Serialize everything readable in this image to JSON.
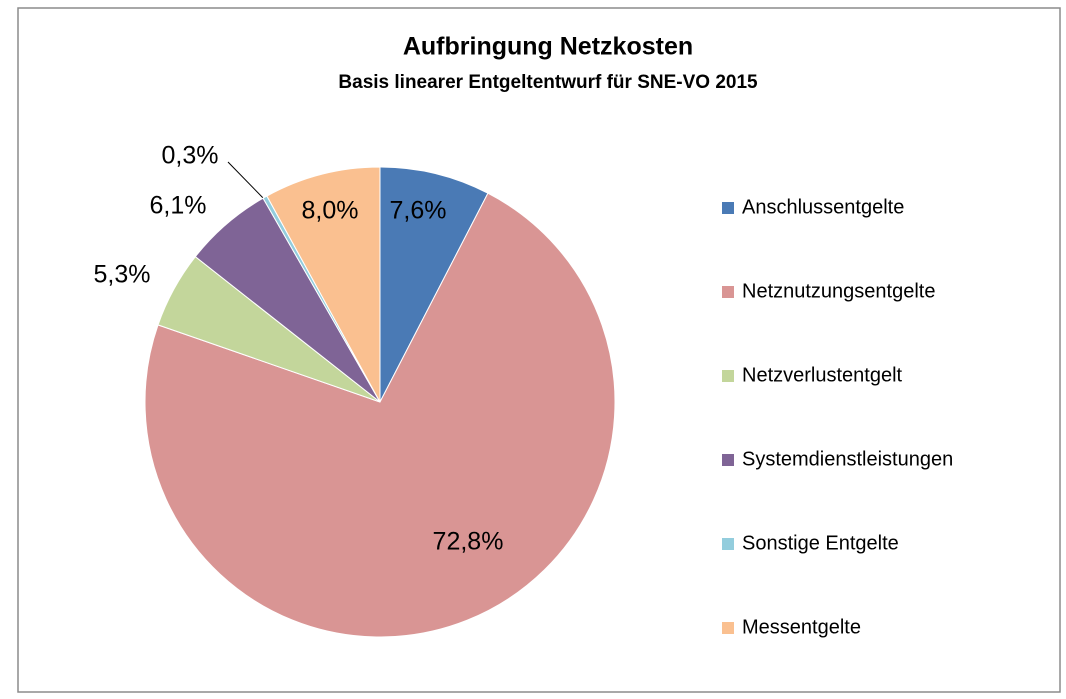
{
  "chart_data": {
    "type": "pie",
    "title": "Aufbringung Netzkosten",
    "subtitle": "Basis linearer Entgeltentwurf für SNE-VO 2015",
    "categories": [
      "Anschlussentgelte",
      "Netznutzungsentgelte",
      "Netzverlustentgelt",
      "Systemdienstleistungen",
      "Sonstige Entgelte",
      "Messentgelte"
    ],
    "values": [
      7.6,
      72.8,
      5.3,
      6.1,
      0.3,
      8.0
    ],
    "value_labels": [
      "7,6%",
      "72,8%",
      "5,3%",
      "6,1%",
      "0,3%",
      "8,0%"
    ],
    "colors": [
      "#4a7ab5",
      "#d99594",
      "#c3d69b",
      "#7f6496",
      "#93cddd",
      "#fac090"
    ],
    "legend": "right"
  }
}
